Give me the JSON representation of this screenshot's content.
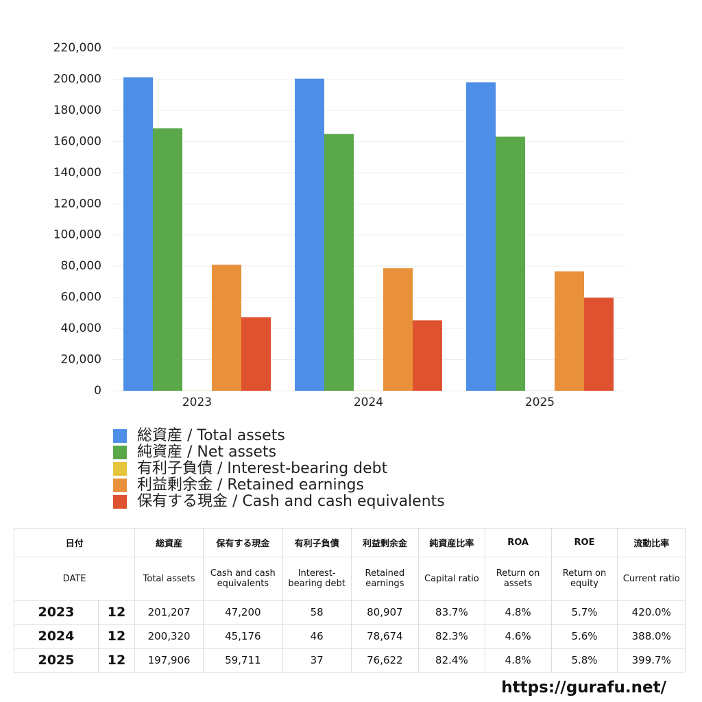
{
  "chart_data": {
    "type": "bar",
    "categories": [
      "2023",
      "2024",
      "2025"
    ],
    "series": [
      {
        "name": "総資産 / Total assets",
        "color": "#4d8fe6",
        "values": [
          201207,
          200320,
          197906
        ]
      },
      {
        "name": "純資産 / Net assets",
        "color": "#5aa84a",
        "values": [
          168410,
          164863,
          163075
        ]
      },
      {
        "name": "有利子負債 / Interest-bearing debt",
        "color": "#e6c43c",
        "values": [
          58,
          46,
          37
        ]
      },
      {
        "name": "利益剰余金 / Retained earnings",
        "color": "#e8903a",
        "values": [
          80907,
          78674,
          76622
        ]
      },
      {
        "name": "保有する現金 /  Cash and cash equivalents",
        "color": "#de5230",
        "values": [
          47200,
          45176,
          59711
        ]
      }
    ],
    "ylim": [
      0,
      220000
    ],
    "yticks": [
      0,
      {
        "value": 20000,
        "label": "20,000"
      },
      {
        "value": 40000,
        "label": "40,000"
      },
      {
        "value": 60000,
        "label": "60,000"
      },
      {
        "value": 80000,
        "label": "80,000"
      },
      {
        "value": 100000,
        "label": "100,000"
      },
      {
        "value": 120000,
        "label": "120,000"
      },
      {
        "value": 140000,
        "label": "140,000"
      },
      {
        "value": 160000,
        "label": "160,000"
      },
      {
        "value": 180000,
        "label": "180,000"
      },
      {
        "value": 200000,
        "label": "200,000"
      },
      {
        "value": 220000,
        "label": "220,000"
      }
    ],
    "grid": true
  },
  "table": {
    "header1": [
      "日付",
      "総資産",
      "保有する現金",
      "有利子負債",
      "利益剰余金",
      "純資産比率",
      "ROA",
      "ROE",
      "流動比率"
    ],
    "header2": [
      "DATE",
      "Total assets",
      "Cash and cash equivalents",
      "Interest-bearing debt",
      "Retained earnings",
      "Capital ratio",
      "Return on assets",
      "Return on equity",
      "Current ratio"
    ],
    "rows": [
      [
        "2023",
        "12",
        "201,207",
        "47,200",
        "58",
        "80,907",
        "83.7%",
        "4.8%",
        "5.7%",
        "420.0%"
      ],
      [
        "2024",
        "12",
        "200,320",
        "45,176",
        "46",
        "78,674",
        "82.3%",
        "4.6%",
        "5.6%",
        "388.0%"
      ],
      [
        "2025",
        "12",
        "197,906",
        "59,711",
        "37",
        "76,622",
        "82.4%",
        "4.8%",
        "5.8%",
        "399.7%"
      ]
    ]
  },
  "footer": "https://gurafu.net/"
}
